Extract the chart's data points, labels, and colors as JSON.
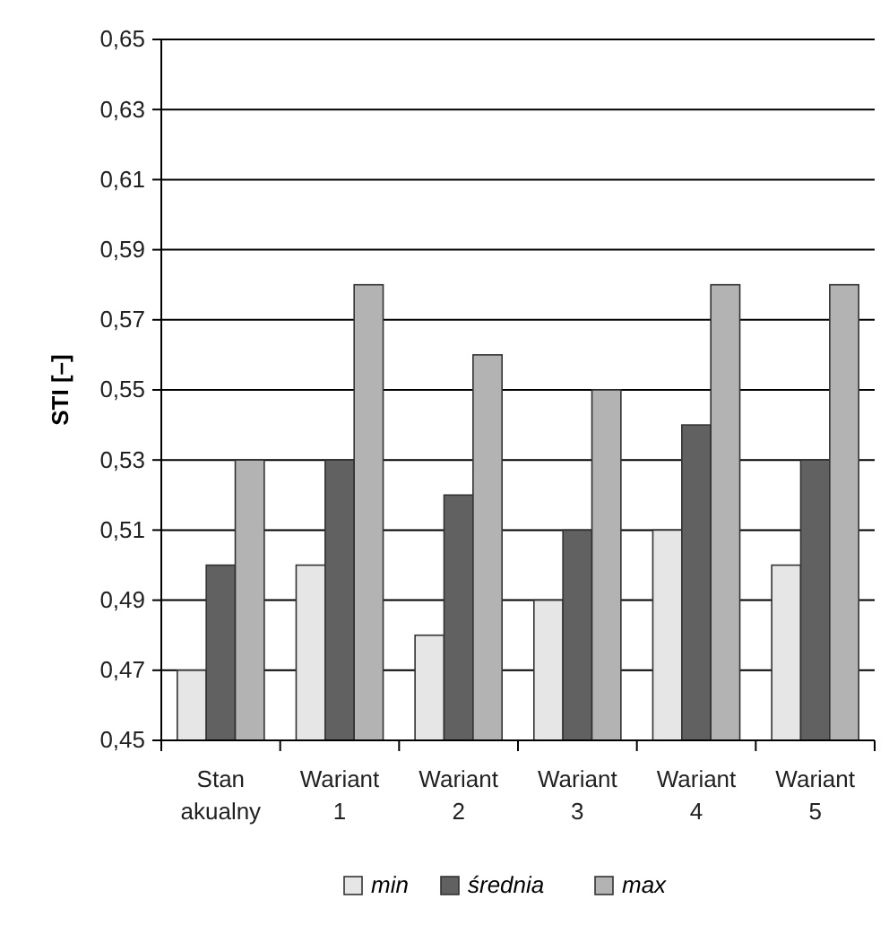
{
  "chart_data": {
    "type": "bar",
    "ylabel": "STI [–]",
    "categories": [
      "Stan akualny",
      "Wariant 1",
      "Wariant 2",
      "Wariant 3",
      "Wariant 4",
      "Wariant 5"
    ],
    "series": [
      {
        "name": "min",
        "color": "#e6e6e6",
        "values": [
          0.47,
          0.5,
          0.48,
          0.49,
          0.51,
          0.5
        ]
      },
      {
        "name": "średnia",
        "color": "#616161",
        "values": [
          0.5,
          0.53,
          0.52,
          0.51,
          0.54,
          0.53
        ]
      },
      {
        "name": "max",
        "color": "#b3b3b3",
        "values": [
          0.53,
          0.58,
          0.56,
          0.55,
          0.58,
          0.58
        ]
      }
    ],
    "ylim": [
      0.45,
      0.65
    ],
    "yticks": [
      {
        "value": 0.45,
        "label": "0,45"
      },
      {
        "value": 0.47,
        "label": "0,47"
      },
      {
        "value": 0.49,
        "label": "0,49"
      },
      {
        "value": 0.51,
        "label": "0,51"
      },
      {
        "value": 0.53,
        "label": "0,53"
      },
      {
        "value": 0.55,
        "label": "0,55"
      },
      {
        "value": 0.57,
        "label": "0,57"
      },
      {
        "value": 0.59,
        "label": "0,59"
      },
      {
        "value": 0.61,
        "label": "0,61"
      },
      {
        "value": 0.63,
        "label": "0,63"
      },
      {
        "value": 0.65,
        "label": "0,65"
      }
    ],
    "grid": "y",
    "legend": "bottom"
  }
}
